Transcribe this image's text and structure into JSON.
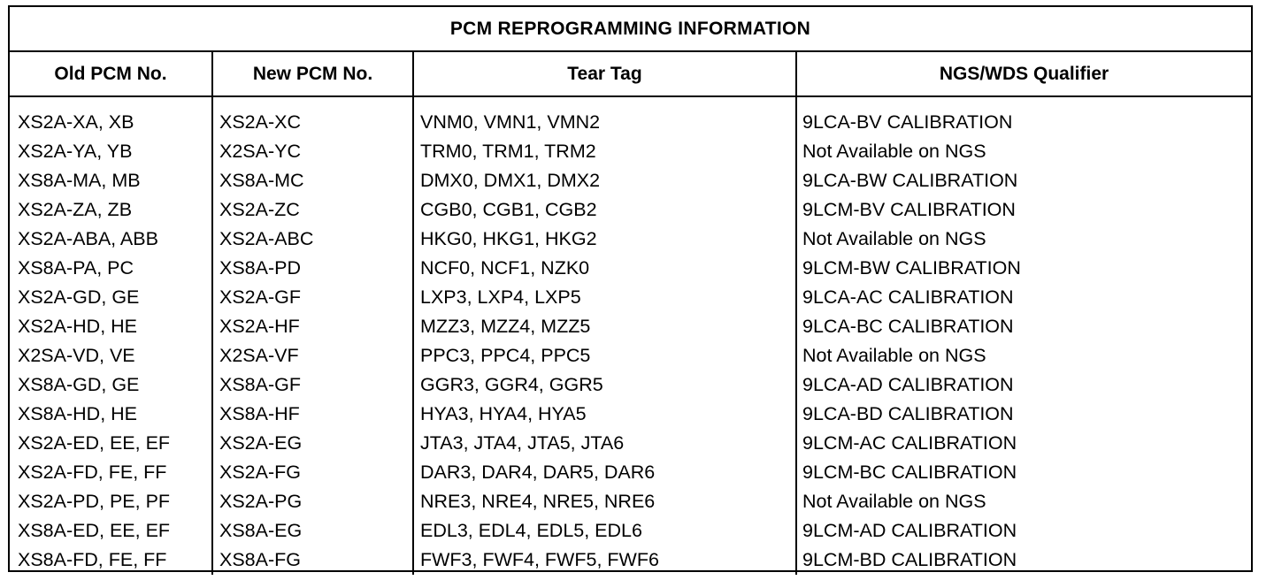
{
  "table": {
    "title": "PCM REPROGRAMMING INFORMATION",
    "headers": [
      "Old PCM No.",
      "New PCM No.",
      "Tear Tag",
      "NGS/WDS Qualifier"
    ],
    "rows": [
      [
        "XS2A-XA, XB",
        "XS2A-XC",
        "VNM0, VMN1, VMN2",
        "9LCA-BV CALIBRATION"
      ],
      [
        "XS2A-YA, YB",
        "X2SA-YC",
        "TRM0, TRM1, TRM2",
        "Not Available on NGS"
      ],
      [
        "XS8A-MA, MB",
        "XS8A-MC",
        "DMX0, DMX1, DMX2",
        "9LCA-BW CALIBRATION"
      ],
      [
        "XS2A-ZA, ZB",
        "XS2A-ZC",
        "CGB0, CGB1, CGB2",
        "9LCM-BV CALIBRATION"
      ],
      [
        "XS2A-ABA, ABB",
        "XS2A-ABC",
        "HKG0, HKG1, HKG2",
        "Not Available on NGS"
      ],
      [
        "XS8A-PA, PC",
        "XS8A-PD",
        "NCF0, NCF1, NZK0",
        "9LCM-BW CALIBRATION"
      ],
      [
        "XS2A-GD, GE",
        "XS2A-GF",
        "LXP3, LXP4, LXP5",
        "9LCA-AC CALIBRATION"
      ],
      [
        "XS2A-HD, HE",
        "XS2A-HF",
        "MZZ3, MZZ4, MZZ5",
        "9LCA-BC CALIBRATION"
      ],
      [
        "X2SA-VD, VE",
        "X2SA-VF",
        "PPC3, PPC4, PPC5",
        "Not Available on NGS"
      ],
      [
        "XS8A-GD, GE",
        "XS8A-GF",
        "GGR3, GGR4, GGR5",
        "9LCA-AD CALIBRATION"
      ],
      [
        "XS8A-HD, HE",
        "XS8A-HF",
        "HYA3, HYA4, HYA5",
        "9LCA-BD CALIBRATION"
      ],
      [
        "XS2A-ED, EE, EF",
        "XS2A-EG",
        "JTA3, JTA4, JTA5, JTA6",
        "9LCM-AC CALIBRATION"
      ],
      [
        "XS2A-FD, FE, FF",
        "XS2A-FG",
        "DAR3, DAR4, DAR5, DAR6",
        "9LCM-BC CALIBRATION"
      ],
      [
        "XS2A-PD, PE, PF",
        "XS2A-PG",
        "NRE3, NRE4, NRE5, NRE6",
        "Not Available on NGS"
      ],
      [
        "XS8A-ED, EE, EF",
        "XS8A-EG",
        "EDL3, EDL4, EDL5, EDL6",
        "9LCM-AD CALIBRATION"
      ],
      [
        "XS8A-FD, FE, FF",
        "XS8A-FG",
        "FWF3, FWF4, FWF5, FWF6",
        "9LCM-BD CALIBRATION"
      ]
    ]
  }
}
